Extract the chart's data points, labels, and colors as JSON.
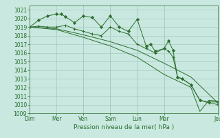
{
  "title": "",
  "xlabel": "Pression niveau de la mer( hPa )",
  "bg_color": "#c8e8e0",
  "grid_color": "#a8c8c0",
  "line_color": "#2d6e2d",
  "ylim": [
    1009,
    1021.5
  ],
  "yticks": [
    1009,
    1010,
    1011,
    1012,
    1013,
    1014,
    1015,
    1016,
    1017,
    1018,
    1019,
    1020,
    1021
  ],
  "xlim": [
    0,
    84
  ],
  "series": [
    {
      "x": [
        0,
        4,
        8,
        12,
        14,
        16,
        20,
        24,
        28,
        32,
        36,
        40,
        44,
        48,
        52,
        54,
        56,
        60,
        62,
        64,
        66,
        68,
        72,
        76,
        80,
        84
      ],
      "y": [
        1019.0,
        1019.8,
        1020.3,
        1020.5,
        1020.5,
        1020.2,
        1019.5,
        1020.3,
        1020.1,
        1019.0,
        1020.3,
        1019.0,
        1018.5,
        1019.9,
        1016.8,
        1017.0,
        1016.2,
        1016.5,
        1017.4,
        1016.3,
        1013.2,
        1013.0,
        1012.3,
        1010.5,
        1010.3,
        1010.3
      ],
      "marker": "D",
      "markersize": 2.0
    },
    {
      "x": [
        0,
        4,
        8,
        12,
        16,
        20,
        24,
        28,
        32,
        36,
        40,
        44,
        48,
        52,
        56,
        60,
        62,
        64,
        66,
        68,
        72,
        76,
        80,
        84
      ],
      "y": [
        1019.0,
        1019.1,
        1019.0,
        1019.0,
        1019.2,
        1018.8,
        1018.5,
        1018.2,
        1018.0,
        1019.0,
        1018.5,
        1018.2,
        1017.0,
        1016.5,
        1016.0,
        1016.5,
        1016.2,
        1015.5,
        1013.2,
        1013.0,
        1012.3,
        1010.5,
        1010.2,
        1010.0
      ],
      "marker": "+",
      "markersize": 3.5
    },
    {
      "x": [
        0,
        12,
        24,
        36,
        48,
        60,
        72,
        84
      ],
      "y": [
        1019.0,
        1018.8,
        1018.1,
        1017.3,
        1016.3,
        1014.8,
        1013.2,
        1010.2
      ],
      "marker": null,
      "markersize": 0
    },
    {
      "x": [
        0,
        12,
        24,
        36,
        48,
        60,
        68,
        72,
        76,
        80,
        84
      ],
      "y": [
        1019.0,
        1018.7,
        1017.8,
        1016.8,
        1015.5,
        1013.5,
        1012.5,
        1012.0,
        1009.2,
        1010.5,
        1010.4
      ],
      "marker": null,
      "markersize": 0
    }
  ],
  "vline_x": [
    0,
    24,
    36,
    48,
    60,
    84
  ],
  "day_tick_x": [
    0,
    12,
    24,
    36,
    48,
    60,
    84
  ],
  "day_tick_labels": [
    "Dim",
    "Mer",
    "Ven",
    "Sam",
    "Lun",
    "Mar",
    "Jeu"
  ],
  "tick_label_fontsize": 5.5,
  "xlabel_fontsize": 6.5
}
